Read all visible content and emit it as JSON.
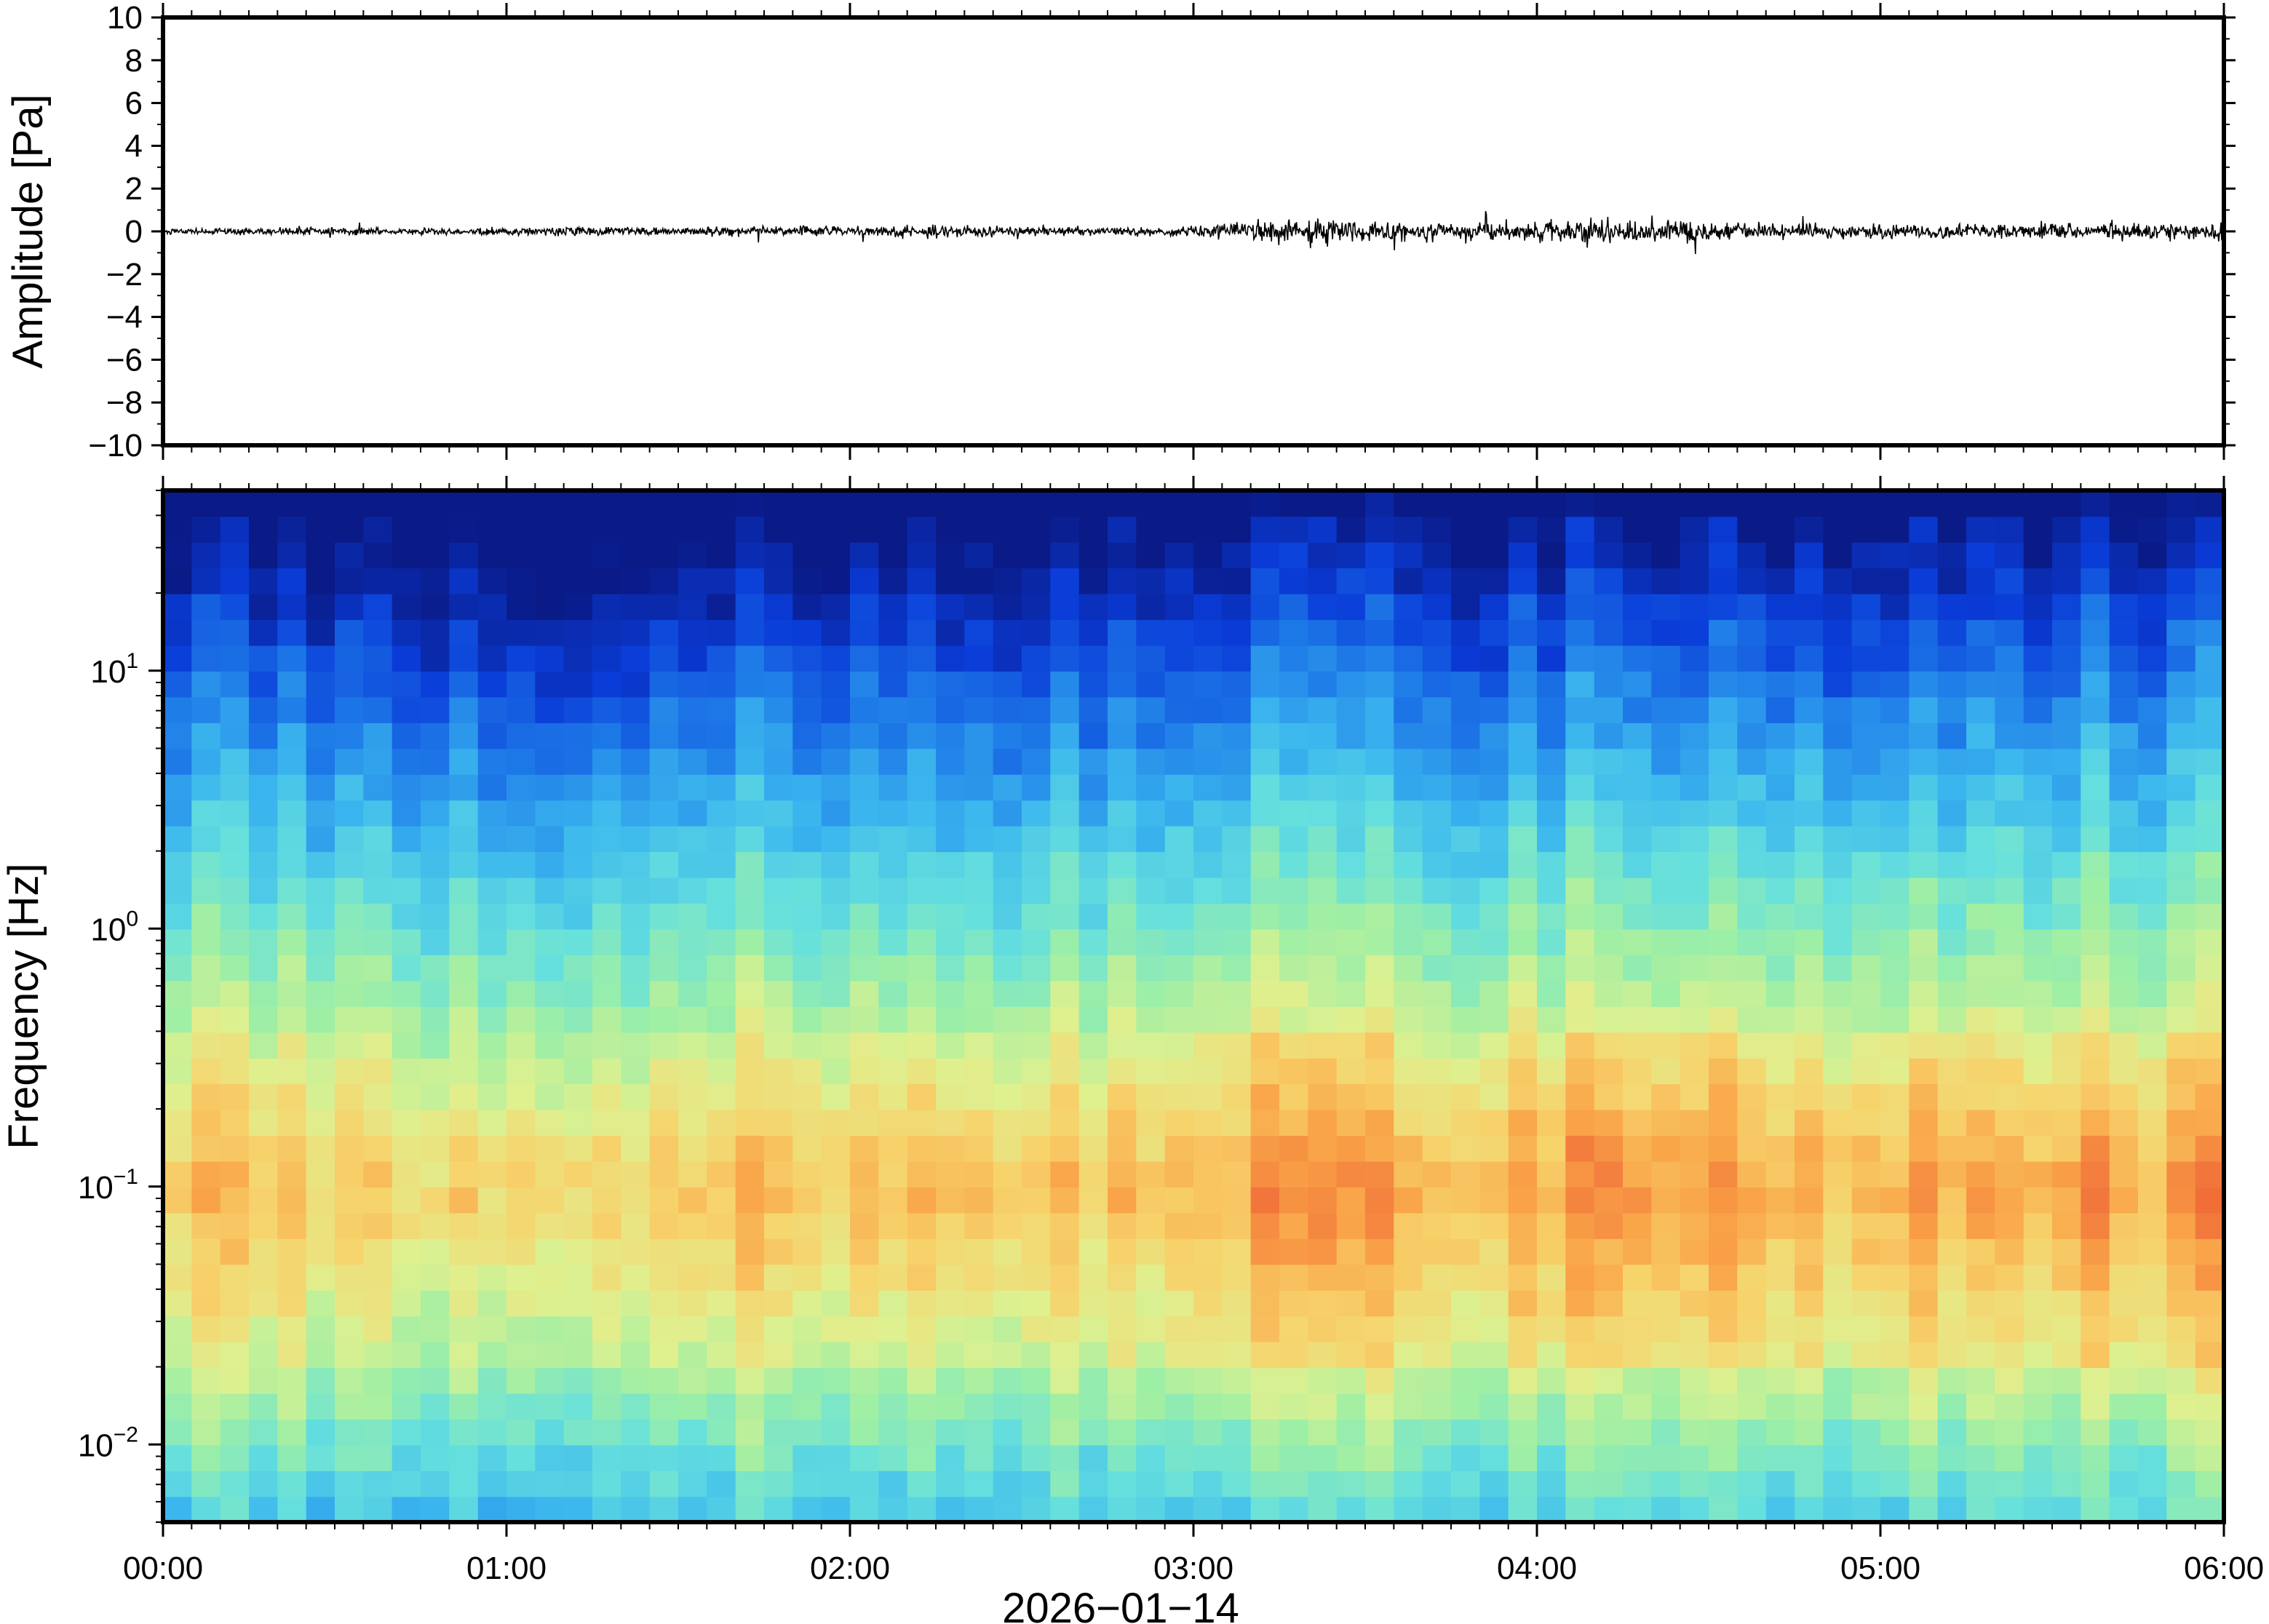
{
  "chart_data": [
    {
      "type": "line",
      "panel": "waveform",
      "ylabel": "Amplitude [Pa]",
      "ylim": [
        -10,
        10
      ],
      "y_ticks": [
        10,
        8,
        6,
        4,
        2,
        0,
        -2,
        -4,
        -6,
        -8,
        -10
      ],
      "y_tick_labels": [
        "10",
        "8",
        "6",
        "4",
        "2",
        "0",
        "−2",
        "−4",
        "−6",
        "−8",
        "−10"
      ],
      "x_range_hours": [
        0,
        6
      ],
      "series": [
        {
          "color": "#000000",
          "envelope": {
            "x_hours": [
              0.0,
              0.5,
              1.0,
              1.2,
              1.5,
              2.0,
              2.2,
              2.5,
              2.9,
              3.05,
              3.2,
              3.4,
              3.5,
              3.7,
              3.9,
              4.1,
              4.15,
              4.3,
              4.4,
              4.6,
              5.0,
              5.4,
              5.6,
              5.8,
              5.9,
              5.97,
              6.0
            ],
            "amp_pa": [
              0.25,
              0.3,
              0.3,
              0.4,
              0.35,
              0.45,
              0.6,
              0.4,
              0.35,
              0.6,
              0.9,
              1.2,
              0.9,
              0.8,
              0.8,
              0.85,
              1.3,
              0.9,
              1.0,
              0.7,
              0.6,
              0.7,
              0.6,
              0.8,
              0.6,
              1.1,
              0.9
            ]
          }
        }
      ]
    },
    {
      "type": "heatmap",
      "panel": "spectrogram",
      "ylabel": "Frequency [Hz]",
      "y_scale": "log",
      "ylim": [
        0.005,
        50
      ],
      "y_ticks": [
        0.01,
        0.1,
        1,
        10
      ],
      "y_tick_labels": [
        {
          "base": "10",
          "exp": "−2"
        },
        {
          "base": "10",
          "exp": "−1"
        },
        {
          "base": "10",
          "exp": "0"
        },
        {
          "base": "10",
          "exp": "1"
        }
      ],
      "xlabel": "2026−01−14",
      "x_ticks": [
        "00:00",
        "01:00",
        "02:00",
        "03:00",
        "04:00",
        "05:00",
        "06:00"
      ],
      "colormap": [
        "#0a1a86",
        "#0a3cd8",
        "#1f7de8",
        "#3cb8ee",
        "#66e0dd",
        "#9eefa5",
        "#dff08f",
        "#f7d36c",
        "#f9a448",
        "#f06a38",
        "#d63520"
      ],
      "activity_by_hour": {
        "x_hours": [
          0.0,
          0.5,
          0.9,
          1.2,
          1.6,
          2.0,
          2.2,
          2.5,
          2.9,
          3.05,
          3.2,
          3.4,
          3.6,
          3.8,
          4.0,
          4.2,
          4.4,
          4.6,
          4.9,
          5.2,
          5.5,
          5.8,
          6.0
        ],
        "relative_level": [
          0.2,
          0.1,
          0.0,
          0.2,
          0.3,
          0.35,
          0.45,
          0.3,
          0.2,
          0.6,
          0.85,
          1.0,
          0.55,
          0.55,
          0.6,
          0.75,
          0.9,
          0.6,
          0.5,
          0.45,
          0.6,
          0.55,
          0.8
        ]
      }
    }
  ]
}
